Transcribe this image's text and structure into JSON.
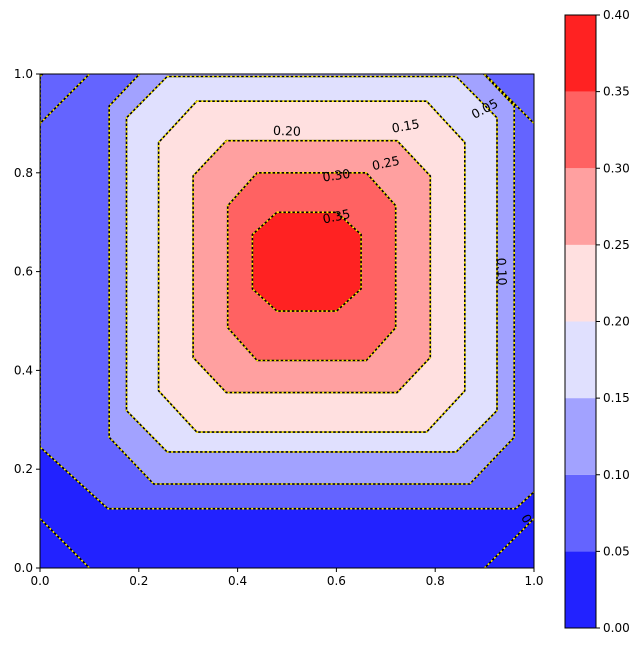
{
  "chart_data": {
    "type": "contour",
    "title": "",
    "xlabel": "",
    "ylabel": "",
    "xlim": [
      0,
      1
    ],
    "ylim": [
      0,
      1
    ],
    "x_ticks": [
      "0.0",
      "0.2",
      "0.4",
      "0.6",
      "0.8",
      "1.0"
    ],
    "y_ticks": [
      "0.0",
      "0.2",
      "0.4",
      "0.6",
      "0.8",
      "1.0"
    ],
    "levels": [
      0.0,
      0.05,
      0.1,
      0.15,
      0.2,
      0.25,
      0.3,
      0.35,
      0.4
    ],
    "level_colors": [
      "#2222ff",
      "#6464ff",
      "#a2a2ff",
      "#e0e0fe",
      "#ffe0e0",
      "#ffa0a0",
      "#ff6262",
      "#ff2222"
    ],
    "colorbar_ticks": [
      "0.00",
      "0.05",
      "0.10",
      "0.15",
      "0.20",
      "0.25",
      "0.30",
      "0.35",
      "0.40"
    ],
    "peak": {
      "x": 0.55,
      "y": 0.62
    },
    "contour_lines": [
      {
        "level": 0.05,
        "label": "0.05",
        "half_x": 0.55,
        "half_y": 0.5,
        "c": 0.55,
        "d": 0.62,
        "corner_cut": 0.75
      },
      {
        "level": 0.1,
        "label": "0.10",
        "half_x": 0.41,
        "half_y": 0.43,
        "c": 0.55,
        "d": 0.6,
        "corner_cut": 0.78
      },
      {
        "level": 0.15,
        "label": "0.15",
        "half_x": 0.375,
        "half_y": 0.38,
        "c": 0.55,
        "d": 0.615,
        "corner_cut": 0.78
      },
      {
        "level": 0.2,
        "label": "0.20",
        "half_x": 0.31,
        "half_y": 0.335,
        "c": 0.55,
        "d": 0.61,
        "corner_cut": 0.75
      },
      {
        "level": 0.25,
        "label": "0.25",
        "half_x": 0.24,
        "half_y": 0.255,
        "c": 0.55,
        "d": 0.61,
        "corner_cut": 0.72
      },
      {
        "level": 0.3,
        "label": "0.30",
        "half_x": 0.17,
        "half_y": 0.19,
        "c": 0.55,
        "d": 0.61,
        "corner_cut": 0.65
      },
      {
        "level": 0.35,
        "label": "0.35",
        "half_x": 0.11,
        "half_y": 0.1,
        "c": 0.54,
        "d": 0.62,
        "corner_cut": 0.55
      }
    ],
    "contour_labels": [
      {
        "text": "0.05",
        "x": 0.9,
        "y": 0.93,
        "angle": 28
      },
      {
        "text": "0.10",
        "x": 0.935,
        "y": 0.6,
        "angle": -88
      },
      {
        "text": "0.15",
        "x": 0.74,
        "y": 0.895,
        "angle": 10
      },
      {
        "text": "0.20",
        "x": 0.5,
        "y": 0.885,
        "angle": -2
      },
      {
        "text": "0.25",
        "x": 0.7,
        "y": 0.82,
        "angle": 12
      },
      {
        "text": "0.30",
        "x": 0.6,
        "y": 0.795,
        "angle": 8
      },
      {
        "text": "0.35",
        "x": 0.6,
        "y": 0.712,
        "angle": 12
      },
      {
        "text": "0",
        "x": 0.985,
        "y": 0.1,
        "angle": -60
      }
    ],
    "colorbar_orientation": "vertical",
    "colorbar_placement": "right",
    "grid": false
  }
}
